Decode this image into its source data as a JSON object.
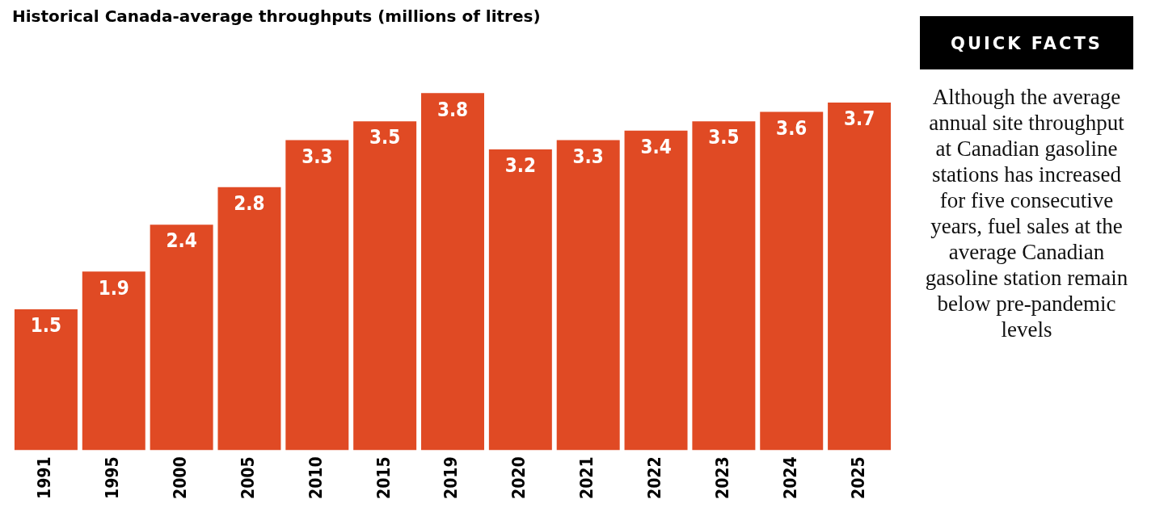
{
  "chart_data": [
    {
      "type": "bar",
      "title": "Historical Canada-average throughputs (millions of litres)",
      "categories": [
        "1991",
        "1995",
        "2000",
        "2005",
        "2010",
        "2015",
        "2019",
        "2020",
        "2021",
        "2022",
        "2023",
        "2024",
        "2025"
      ],
      "values": [
        1.5,
        1.9,
        2.4,
        2.8,
        3.3,
        3.5,
        3.8,
        3.2,
        3.3,
        3.4,
        3.5,
        3.6,
        3.7
      ],
      "color": "#e04a24",
      "data_labels": true,
      "tick_labels": "x",
      "grid": false,
      "legend": false
    },
    {
      "type": "other",
      "title": "QUICK FACTS",
      "annotations": [
        "Although the average annual site throughput at Canadian gasoline stations has increased for five consecutive years, fuel sales at the average Canadian gasoline station remain below pre-pandemic levels"
      ]
    }
  ]
}
